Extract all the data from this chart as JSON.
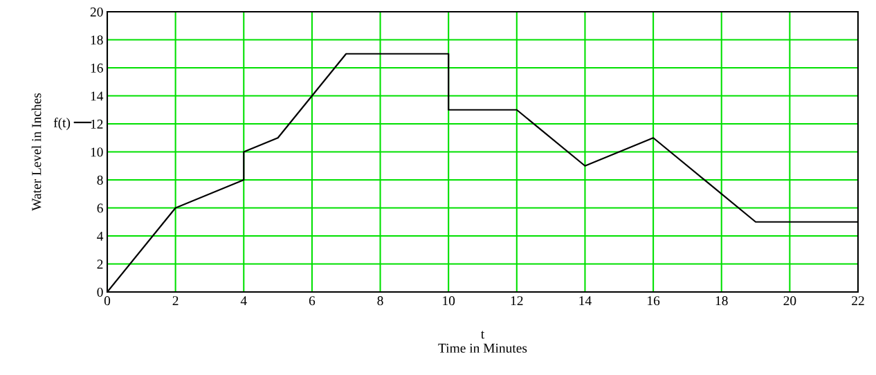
{
  "chart_data": {
    "type": "line",
    "xlabel": "t\nTime in Minutes",
    "ylabel": "Water Level in Inches",
    "series": [
      {
        "name": "f(t)",
        "color": "#000000",
        "x": [
          0,
          2,
          4,
          4,
          5,
          7,
          10,
          10,
          12,
          14,
          16,
          19,
          22
        ],
        "values": [
          0,
          6,
          8,
          10,
          11,
          17,
          17,
          13,
          13,
          9,
          11,
          5,
          5
        ]
      }
    ],
    "xlim": [
      0,
      22
    ],
    "xticks": [
      0,
      2,
      4,
      6,
      8,
      10,
      12,
      14,
      16,
      18,
      20,
      22
    ],
    "ylim": [
      0,
      20
    ],
    "yticks": [
      0,
      2,
      4,
      6,
      8,
      10,
      12,
      14,
      16,
      18,
      20
    ],
    "grid": true,
    "legend": "left",
    "marker": "none",
    "line_style": "solid"
  }
}
